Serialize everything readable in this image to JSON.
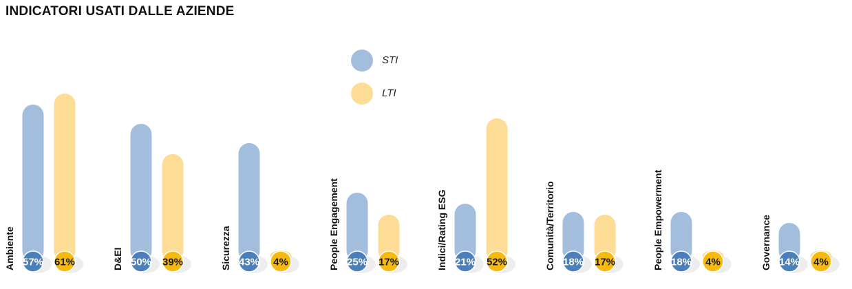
{
  "title": "INDICATORI USATI DALLE AZIENDE",
  "legend": {
    "items": [
      {
        "label": "STI",
        "color": "#a3bddc"
      },
      {
        "label": "LTI",
        "color": "#fddc96"
      }
    ]
  },
  "colors": {
    "sti_bar": "#a3bddc",
    "lti_bar": "#fddc96",
    "sti_badge": "#4a7fb9",
    "lti_badge": "#f5b90f",
    "sti_badge_text": "#ffffff",
    "lti_badge_text": "#1a1a1a"
  },
  "chart_data": {
    "type": "bar",
    "title": "INDICATORI USATI DALLE AZIENDE",
    "categories": [
      "Ambiente",
      "D&EI",
      "Sicurezza",
      "People Engagement",
      "Indici/Rating ESG",
      "Comunità/Territorio",
      "People Empowerment",
      "Governance"
    ],
    "series": [
      {
        "name": "STI",
        "values": [
          57,
          50,
          43,
          25,
          21,
          18,
          18,
          14
        ]
      },
      {
        "name": "LTI",
        "values": [
          61,
          39,
          4,
          17,
          52,
          17,
          4,
          4
        ]
      }
    ],
    "value_suffix": "%",
    "ylim": [
      0,
      61
    ],
    "grid": false,
    "legend_position": "top-center"
  }
}
